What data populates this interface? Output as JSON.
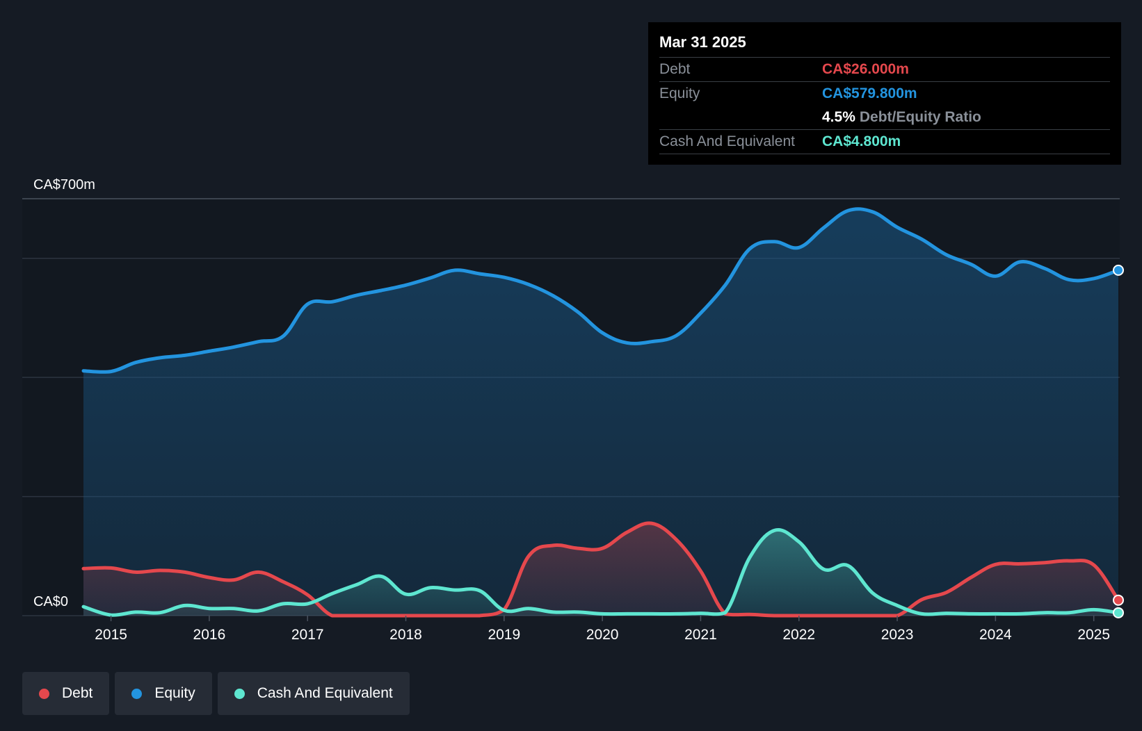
{
  "colors": {
    "background": "#151b24",
    "debt": "#e5484d",
    "equity": "#2394df",
    "cash": "#5ee6d0",
    "grid": "#2c3440",
    "text": "#ffffff",
    "muted": "#8a9099"
  },
  "tooltip": {
    "date": "Mar 31 2025",
    "rows": [
      {
        "label": "Debt",
        "value": "CA$26.000m"
      },
      {
        "label": "Equity",
        "value": "CA$579.800m"
      },
      {
        "ratio_value": "4.5%",
        "ratio_label": "Debt/Equity Ratio"
      },
      {
        "label": "Cash And Equivalent",
        "value": "CA$4.800m"
      }
    ]
  },
  "legend": [
    {
      "name": "Debt",
      "color_key": "debt"
    },
    {
      "name": "Equity",
      "color_key": "equity"
    },
    {
      "name": "Cash And Equivalent",
      "color_key": "cash"
    }
  ],
  "chart_data": {
    "type": "area",
    "title": "",
    "xlabel": "",
    "ylabel": "",
    "ylim": [
      0,
      700
    ],
    "xlim": [
      2014.55,
      2025.25
    ],
    "y_tick_labels": [
      {
        "value": 700,
        "label": "CA$700m"
      },
      {
        "value": 0,
        "label": "CA$0"
      }
    ],
    "gridlines": [
      700,
      600,
      400,
      200,
      0
    ],
    "x_ticks": [
      2015,
      2016,
      2017,
      2018,
      2019,
      2020,
      2021,
      2022,
      2023,
      2024,
      2025
    ],
    "x_tick_labels": [
      "2015",
      "2016",
      "2017",
      "2018",
      "2019",
      "2020",
      "2021",
      "2022",
      "2023",
      "2024",
      "2025"
    ],
    "series": [
      {
        "name": "Equity",
        "color_key": "equity",
        "points": [
          [
            2014.72,
            411
          ],
          [
            2015.0,
            410
          ],
          [
            2015.25,
            425
          ],
          [
            2015.5,
            433
          ],
          [
            2015.75,
            437
          ],
          [
            2016.0,
            444
          ],
          [
            2016.25,
            451
          ],
          [
            2016.5,
            460
          ],
          [
            2016.75,
            469
          ],
          [
            2017.0,
            523
          ],
          [
            2017.25,
            527
          ],
          [
            2017.5,
            538
          ],
          [
            2017.75,
            546
          ],
          [
            2018.0,
            555
          ],
          [
            2018.25,
            567
          ],
          [
            2018.5,
            580
          ],
          [
            2018.75,
            574
          ],
          [
            2019.0,
            568
          ],
          [
            2019.25,
            556
          ],
          [
            2019.5,
            537
          ],
          [
            2019.75,
            510
          ],
          [
            2020.0,
            475
          ],
          [
            2020.25,
            458
          ],
          [
            2020.5,
            460
          ],
          [
            2020.75,
            470
          ],
          [
            2021.0,
            508
          ],
          [
            2021.25,
            555
          ],
          [
            2021.5,
            616
          ],
          [
            2021.75,
            628
          ],
          [
            2022.0,
            618
          ],
          [
            2022.25,
            651
          ],
          [
            2022.5,
            680
          ],
          [
            2022.75,
            678
          ],
          [
            2023.0,
            652
          ],
          [
            2023.25,
            632
          ],
          [
            2023.5,
            606
          ],
          [
            2023.75,
            590
          ],
          [
            2024.0,
            570
          ],
          [
            2024.25,
            594
          ],
          [
            2024.5,
            583
          ],
          [
            2024.75,
            564
          ],
          [
            2025.0,
            566
          ],
          [
            2025.25,
            580
          ]
        ]
      },
      {
        "name": "Debt",
        "color_key": "debt",
        "points": [
          [
            2014.72,
            79
          ],
          [
            2015.0,
            80
          ],
          [
            2015.25,
            73
          ],
          [
            2015.5,
            76
          ],
          [
            2015.75,
            73
          ],
          [
            2016.0,
            64
          ],
          [
            2016.25,
            60
          ],
          [
            2016.5,
            73
          ],
          [
            2016.75,
            57
          ],
          [
            2017.0,
            35
          ],
          [
            2017.25,
            0
          ],
          [
            2017.5,
            0
          ],
          [
            2017.75,
            0
          ],
          [
            2018.0,
            0
          ],
          [
            2018.25,
            0
          ],
          [
            2018.5,
            0
          ],
          [
            2018.75,
            0
          ],
          [
            2019.0,
            10
          ],
          [
            2019.25,
            100
          ],
          [
            2019.5,
            118
          ],
          [
            2019.75,
            113
          ],
          [
            2020.0,
            113
          ],
          [
            2020.25,
            140
          ],
          [
            2020.5,
            155
          ],
          [
            2020.75,
            128
          ],
          [
            2021.0,
            75
          ],
          [
            2021.25,
            3
          ],
          [
            2021.5,
            2
          ],
          [
            2021.75,
            0
          ],
          [
            2022.0,
            0
          ],
          [
            2022.25,
            0
          ],
          [
            2022.5,
            0
          ],
          [
            2022.75,
            0
          ],
          [
            2023.0,
            0
          ],
          [
            2023.25,
            27
          ],
          [
            2023.5,
            39
          ],
          [
            2023.75,
            64
          ],
          [
            2024.0,
            86
          ],
          [
            2024.25,
            87
          ],
          [
            2024.5,
            89
          ],
          [
            2024.75,
            92
          ],
          [
            2025.0,
            85
          ],
          [
            2025.25,
            26
          ]
        ]
      },
      {
        "name": "Cash And Equivalent",
        "color_key": "cash",
        "points": [
          [
            2014.72,
            15
          ],
          [
            2015.0,
            1
          ],
          [
            2015.25,
            6
          ],
          [
            2015.5,
            5
          ],
          [
            2015.75,
            17
          ],
          [
            2016.0,
            12
          ],
          [
            2016.25,
            12
          ],
          [
            2016.5,
            8
          ],
          [
            2016.75,
            20
          ],
          [
            2017.0,
            20
          ],
          [
            2017.25,
            37
          ],
          [
            2017.5,
            52
          ],
          [
            2017.75,
            66
          ],
          [
            2018.0,
            36
          ],
          [
            2018.25,
            47
          ],
          [
            2018.5,
            43
          ],
          [
            2018.75,
            42
          ],
          [
            2019.0,
            9
          ],
          [
            2019.25,
            12
          ],
          [
            2019.5,
            6
          ],
          [
            2019.75,
            6
          ],
          [
            2020.0,
            3
          ],
          [
            2020.25,
            3
          ],
          [
            2020.5,
            3
          ],
          [
            2020.75,
            3
          ],
          [
            2021.0,
            4
          ],
          [
            2021.25,
            5
          ],
          [
            2021.5,
            98
          ],
          [
            2021.75,
            143
          ],
          [
            2022.0,
            124
          ],
          [
            2022.25,
            78
          ],
          [
            2022.5,
            84
          ],
          [
            2022.75,
            38
          ],
          [
            2023.0,
            17
          ],
          [
            2023.25,
            3
          ],
          [
            2023.5,
            4
          ],
          [
            2023.75,
            3
          ],
          [
            2024.0,
            3
          ],
          [
            2024.25,
            3
          ],
          [
            2024.5,
            5
          ],
          [
            2024.75,
            5
          ],
          [
            2025.0,
            10
          ],
          [
            2025.25,
            4.8
          ]
        ]
      }
    ]
  }
}
